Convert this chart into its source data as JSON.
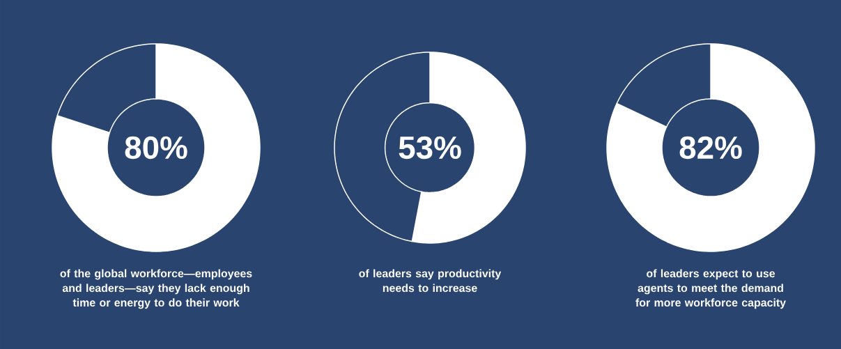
{
  "chart_data": [
    {
      "type": "donut",
      "categories": [
        null,
        null
      ],
      "values": [
        80,
        20
      ],
      "colors": [
        "#ffffff",
        "#2a4470"
      ],
      "value_labels": [
        "80%",
        null
      ],
      "subtitle": "of the global workforce—employees and leaders—say they lack enough time or energy to do their work"
    },
    {
      "type": "donut",
      "categories": [
        null,
        null
      ],
      "values": [
        53,
        47
      ],
      "colors": [
        "#ffffff",
        "#2a4470"
      ],
      "value_labels": [
        "53%",
        null
      ],
      "subtitle": "of leaders say productivity needs to increase"
    },
    {
      "type": "donut",
      "categories": [
        null,
        null
      ],
      "values": [
        82,
        18
      ],
      "colors": [
        "#ffffff",
        "#2a4470"
      ],
      "value_labels": [
        "82%",
        null
      ],
      "subtitle": "of leaders expect to use agents to meet the demand for more workforce capacity"
    }
  ]
}
